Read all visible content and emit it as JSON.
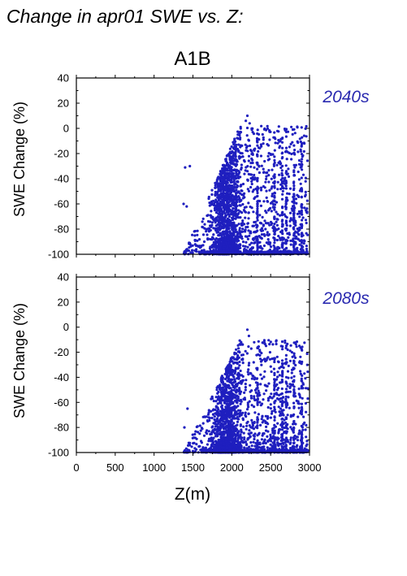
{
  "chart_data": {
    "title": "Change in apr01 SWE vs. Z:",
    "scenario": "A1B",
    "xlabel": "Z(m)",
    "point_color": "#1f1fbf",
    "label_color": "#2a2ab0",
    "panels": [
      {
        "type": "scatter",
        "period": "2040s",
        "ylabel": "SWE Change (%)",
        "xlim": [
          0,
          3000
        ],
        "ylim": [
          -100,
          40
        ],
        "xticks": [],
        "yticks": [
          "40",
          "20",
          "0",
          "-20",
          "-40",
          "-60",
          "-80",
          "-100"
        ],
        "xmin_pts": 1380,
        "xmax_pts": 2980,
        "ymax_pts": 10,
        "ymin_pts": -100,
        "highlights": [
          {
            "x": 2200,
            "y": 10
          },
          {
            "x": 2180,
            "y": 6
          },
          {
            "x": 2230,
            "y": 4
          },
          {
            "x": 1400,
            "y": -31
          },
          {
            "x": 1460,
            "y": -30
          },
          {
            "x": 1380,
            "y": -60
          },
          {
            "x": 1420,
            "y": -62
          },
          {
            "x": 1390,
            "y": -98
          }
        ]
      },
      {
        "type": "scatter",
        "period": "2080s",
        "ylabel": "SWE Change (%)",
        "xlim": [
          0,
          3000
        ],
        "ylim": [
          -100,
          40
        ],
        "xticks": [
          "0",
          "500",
          "1000",
          "1500",
          "2000",
          "2500",
          "3000"
        ],
        "yticks": [
          "40",
          "20",
          "0",
          "-20",
          "-40",
          "-60",
          "-80",
          "-100"
        ],
        "xmin_pts": 1380,
        "xmax_pts": 2980,
        "ymax_pts": -2,
        "ymin_pts": -100,
        "highlights": [
          {
            "x": 2200,
            "y": -2
          },
          {
            "x": 2220,
            "y": -7
          },
          {
            "x": 2120,
            "y": -12
          },
          {
            "x": 2100,
            "y": -20
          },
          {
            "x": 1430,
            "y": -65
          },
          {
            "x": 1390,
            "y": -80
          },
          {
            "x": 1400,
            "y": -99
          }
        ]
      }
    ]
  }
}
